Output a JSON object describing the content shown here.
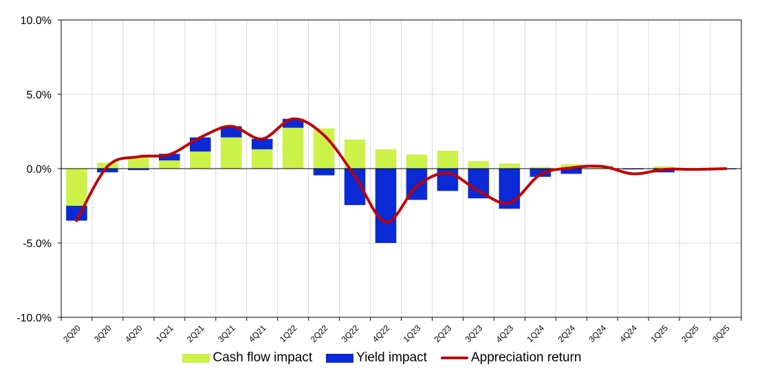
{
  "chart_data": {
    "type": "bar",
    "stacked": true,
    "categories": [
      "2Q20",
      "3Q20",
      "4Q20",
      "1Q21",
      "2Q21",
      "3Q21",
      "4Q21",
      "1Q22",
      "2Q22",
      "3Q22",
      "4Q22",
      "1Q23",
      "2Q23",
      "3Q23",
      "4Q23",
      "1Q24",
      "2Q24",
      "3Q24",
      "4Q24",
      "1Q25",
      "2Q25",
      "3Q25"
    ],
    "series": [
      {
        "name": "Cash flow impact",
        "type": "bar",
        "color": "#ccf24a",
        "values": [
          -2.5,
          0.4,
          0.8,
          0.55,
          1.15,
          2.1,
          1.3,
          2.75,
          2.7,
          1.95,
          1.3,
          0.95,
          1.2,
          0.5,
          0.35,
          0.1,
          0.3,
          0.1,
          0.0,
          0.15,
          0.0,
          0.0
        ]
      },
      {
        "name": "Yield impact",
        "type": "bar",
        "color": "#0a2ad6",
        "values": [
          -1.0,
          -0.25,
          -0.1,
          0.45,
          0.95,
          0.75,
          0.7,
          0.6,
          -0.45,
          -2.45,
          -5.0,
          -2.1,
          -1.5,
          -2.0,
          -2.7,
          -0.55,
          -0.35,
          0.05,
          -0.05,
          -0.25,
          -0.05,
          -0.05
        ]
      },
      {
        "name": "Appreciation return",
        "type": "line",
        "color": "#c00000",
        "values": [
          -3.5,
          0.15,
          0.8,
          0.95,
          2.1,
          2.85,
          2.0,
          3.35,
          2.25,
          -0.5,
          -3.6,
          -1.2,
          -0.3,
          -1.5,
          -2.3,
          -0.4,
          0.05,
          0.15,
          -0.35,
          -0.05,
          -0.05,
          0.0
        ]
      }
    ],
    "ylim": [
      -10,
      10
    ],
    "yticks": [
      10,
      5,
      0,
      -5,
      -10
    ],
    "ytick_labels": [
      "10.0%",
      "5.0%",
      "0.0%",
      "-5.0%",
      "-10.0%"
    ],
    "title": "",
    "xlabel": "",
    "ylabel": "",
    "grid": true,
    "legend_position": "bottom"
  }
}
